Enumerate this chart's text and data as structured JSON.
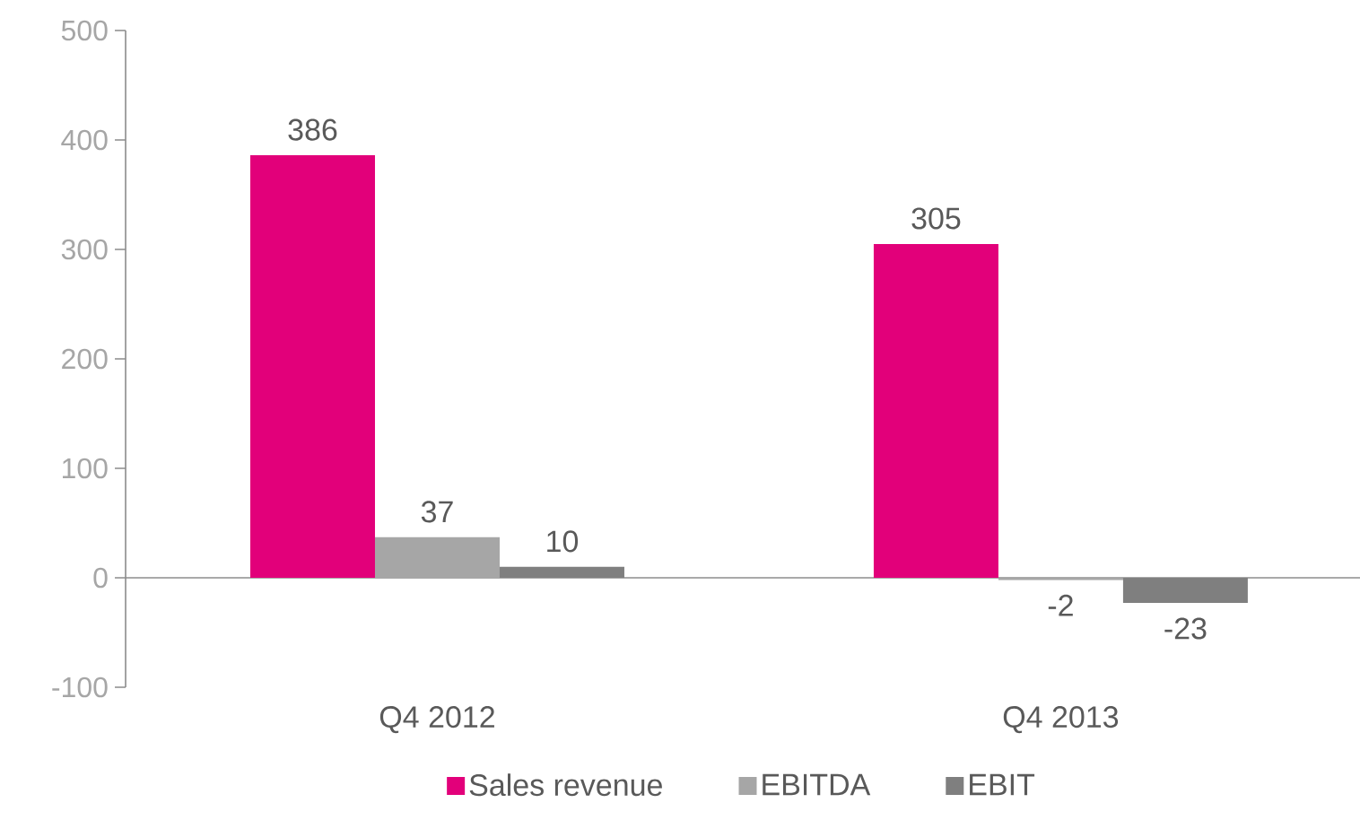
{
  "chart_data": {
    "type": "bar",
    "categories": [
      "Q4 2012",
      "Q4 2013"
    ],
    "series": [
      {
        "name": "Sales revenue",
        "color": "#e2007a",
        "values": [
          386,
          305
        ]
      },
      {
        "name": "EBITDA",
        "color": "#a6a6a6",
        "values": [
          37,
          -2
        ]
      },
      {
        "name": "EBIT",
        "color": "#7f7f7f",
        "values": [
          10,
          -23
        ]
      }
    ],
    "ylim": [
      -100,
      500
    ],
    "yticks": [
      -100,
      0,
      100,
      200,
      300,
      400,
      500
    ],
    "data_labels": true,
    "legend": "bottom"
  }
}
